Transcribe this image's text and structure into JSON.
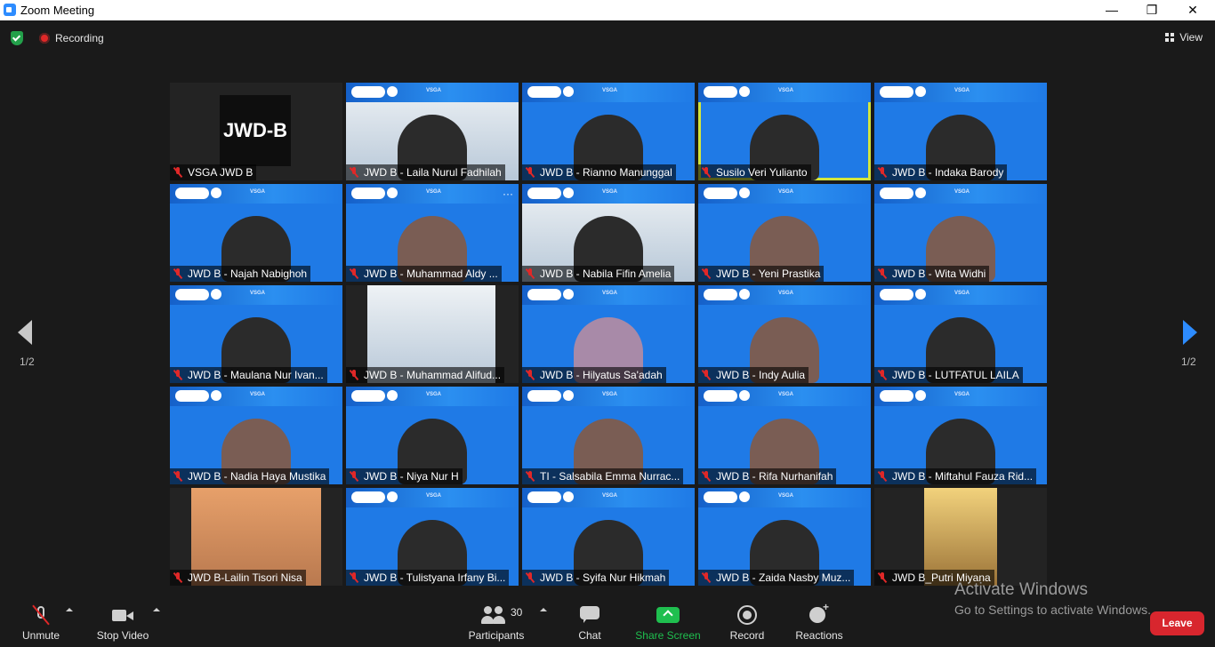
{
  "window": {
    "title": "Zoom Meeting",
    "minimize": "—",
    "maximize": "❐",
    "close": "✕"
  },
  "topbar": {
    "recording_label": "Recording",
    "view_label": "View"
  },
  "tile_brand": "VSGA",
  "participants_grid": [
    {
      "name": "VSGA JWD B",
      "card": "JWD-B"
    },
    {
      "name": "JWD B - Laila Nurul Fadhilah"
    },
    {
      "name": "JWD B - Rianno Manunggal"
    },
    {
      "name": "Susilo Veri Yulianto",
      "active": true
    },
    {
      "name": "JWD B - Indaka Barody"
    },
    {
      "name": "JWD B - Najah Nabighoh"
    },
    {
      "name": "JWD B - Muhammad Aldy ...",
      "more": "···"
    },
    {
      "name": "JWD B - Nabila Fifin Amelia"
    },
    {
      "name": "JWD B - Yeni Prastika"
    },
    {
      "name": "JWD B - Wita Widhi"
    },
    {
      "name": "JWD B - Maulana Nur Ivan..."
    },
    {
      "name": "JWD B - Muhammad Alifud..."
    },
    {
      "name": "JWD B - Hilyatus Sa'adah"
    },
    {
      "name": "JWD B - Indy Aulia"
    },
    {
      "name": "JWD B - LUTFATUL LAILA"
    },
    {
      "name": "JWD B - Nadia Haya Mustika"
    },
    {
      "name": "JWD B - Niya Nur H"
    },
    {
      "name": "TI - Salsabila Emma Nurrac..."
    },
    {
      "name": "JWD B - Rifa Nurhanifah"
    },
    {
      "name": "JWD B - Miftahul Fauza Rid..."
    },
    {
      "name": "JWD B-Lailin Tisori Nisa"
    },
    {
      "name": "JWD B - Tulistyana Irfany Bi..."
    },
    {
      "name": "JWD B - Syifa Nur Hikmah"
    },
    {
      "name": "JWD B - Zaida Nasby Muz..."
    },
    {
      "name": "JWD B_Putri Miyana"
    }
  ],
  "pagination": {
    "left": "1/2",
    "right": "1/2"
  },
  "watermark": {
    "title": "Activate Windows",
    "subtitle": "Go to Settings to activate Windows."
  },
  "toolbar": {
    "unmute": "Unmute",
    "stop_video": "Stop Video",
    "participants": "Participants",
    "participants_count": "30",
    "chat": "Chat",
    "share_screen": "Share Screen",
    "record": "Record",
    "reactions": "Reactions",
    "leave": "Leave"
  },
  "colors": {
    "active_speaker": "#d4e63c",
    "share_green": "#1fbf4f",
    "leave_red": "#d8262e",
    "accent_blue": "#2d8cff"
  }
}
